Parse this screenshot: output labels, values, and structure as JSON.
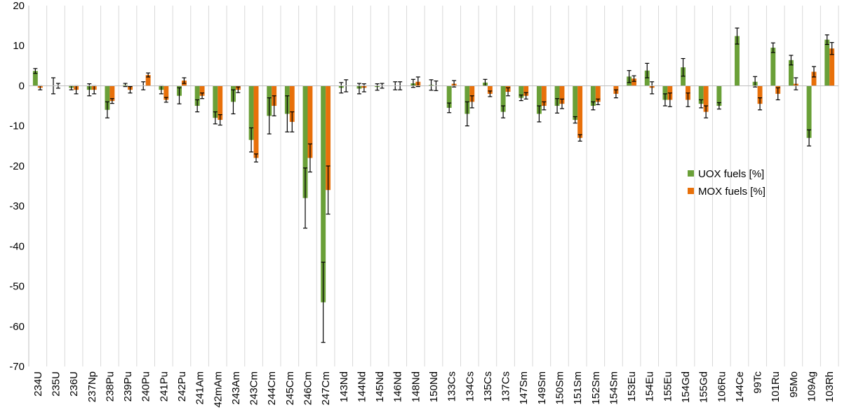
{
  "chart_data": {
    "type": "bar",
    "title": "",
    "xlabel": "",
    "ylabel": "",
    "ylim": [
      -70,
      20
    ],
    "yticks": [
      20,
      10,
      0,
      -10,
      -20,
      -30,
      -40,
      -50,
      -60,
      -70
    ],
    "grid": "vertical",
    "legend_position": "right",
    "categories": [
      "234U",
      "235U",
      "236U",
      "237Np",
      "238Pu",
      "239Pu",
      "240Pu",
      "241Pu",
      "242Pu",
      "241Am",
      "42mAm",
      "243Am",
      "243Cm",
      "244Cm",
      "245Cm",
      "246Cm",
      "247Cm",
      "143Nd",
      "144Nd",
      "145Nd",
      "146Nd",
      "148Nd",
      "150Nd",
      "133Cs",
      "134Cs",
      "135Cs",
      "137Cs",
      "147Sm",
      "149Sm",
      "150Sm",
      "151Sm",
      "152Sm",
      "154Sm",
      "153Eu",
      "154Eu",
      "155Eu",
      "154Gd",
      "155Gd",
      "106Ru",
      "144Ce",
      "99Tc",
      "101Ru",
      "95Mo",
      "109Ag",
      "103Rh"
    ],
    "series": [
      {
        "name": "UOX fuels [%]",
        "color": "#6aa038",
        "values": [
          3.7,
          0,
          -0.5,
          -1,
          -6,
          0.2,
          0,
          -1,
          -2.5,
          -5,
          -8,
          -4,
          -13.5,
          -7.5,
          -7,
          -28,
          -54,
          -0.5,
          -0.7,
          -0.3,
          0,
          0.6,
          0.2,
          -5.5,
          -7,
          0.8,
          -6.5,
          -3,
          -7,
          -5,
          -8.5,
          -5,
          0,
          2.3,
          3.8,
          -3.5,
          4.6,
          -4.5,
          -5,
          12.4,
          1,
          9.5,
          6.4,
          -13,
          11.5
        ],
        "errors": [
          0.6,
          2.0,
          0.5,
          1.5,
          2.0,
          0.4,
          1.0,
          1.0,
          2.0,
          1.5,
          1.5,
          3.0,
          3.0,
          4.5,
          4.5,
          7.5,
          10,
          1.3,
          1.3,
          0.8,
          1.0,
          1.0,
          1.3,
          1.2,
          3.0,
          0.8,
          1.5,
          0.7,
          2.0,
          1.8,
          0.8,
          1.0,
          0,
          1.5,
          1.8,
          1.5,
          2.2,
          1.0,
          0.8,
          2.0,
          1.3,
          1.2,
          1.2,
          2.0,
          1.2
        ]
      },
      {
        "name": "MOX fuels [%]",
        "color": "#e8700a",
        "values": [
          -0.5,
          0,
          -1,
          -1,
          -3.8,
          -1,
          2.7,
          -3.5,
          1.3,
          -2.5,
          -8.5,
          -1,
          -18,
          -5,
          -9,
          -18,
          -26,
          0,
          -0.5,
          0,
          0,
          1,
          0,
          0.5,
          -4,
          -2,
          -1.5,
          -2.5,
          -5,
          -4.5,
          -13,
          -4,
          -2,
          1.8,
          -0.5,
          -3.5,
          -3.5,
          -6.5,
          0,
          0,
          -4.5,
          -2,
          0.5,
          3.5,
          9.3
        ]
      }
    ],
    "mox_errors": [
      0.5,
      0.6,
      1.0,
      1.0,
      0.6,
      0.8,
      0.5,
      0.6,
      0.7,
      0.7,
      1.3,
      0.7,
      1.0,
      2.5,
      2.5,
      3.5,
      6.0,
      1.5,
      1.0,
      0.6,
      1.0,
      1.2,
      1.2,
      0.8,
      1.5,
      0.7,
      1.0,
      0.8,
      1.0,
      1.2,
      0.8,
      0.7,
      1.0,
      0.7,
      1.5,
      1.7,
      1.7,
      1.5,
      0,
      0,
      1.5,
      1.5,
      1.5,
      1.3,
      1.5
    ]
  }
}
